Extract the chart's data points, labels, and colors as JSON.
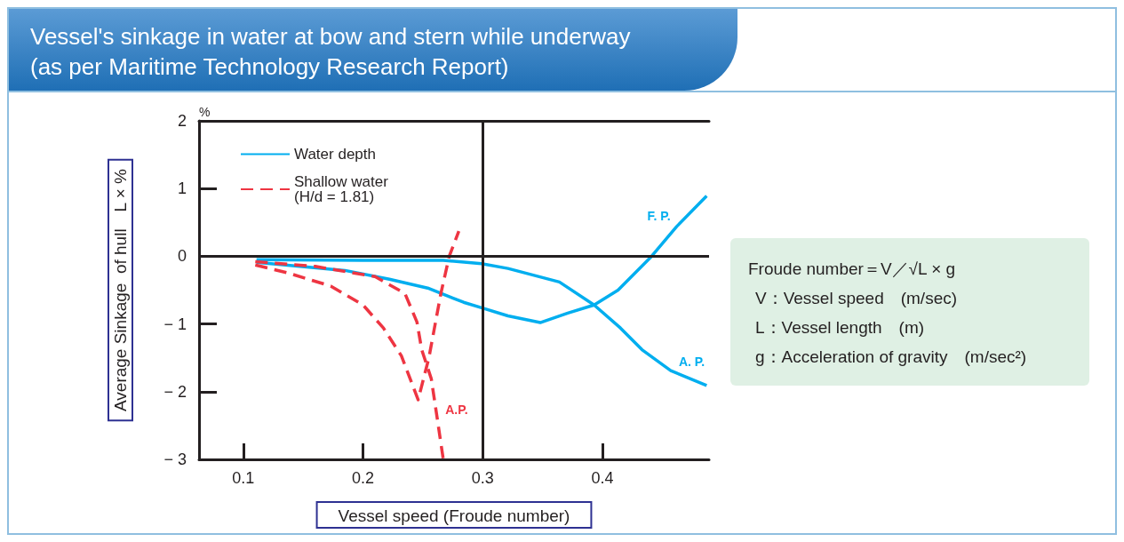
{
  "chart_data": {
    "type": "line",
    "title": "Vessel's sinkage in water at bow and stern while underway",
    "subtitle": "(as per Maritime Technology Research Report)",
    "xlabel": "Vessel speed (Froude number)",
    "ylabel": "Average Sinkage  of hull　L × %",
    "xlim": [
      0.063,
      0.489
    ],
    "xticks": [
      0.1,
      0.2,
      0.3,
      0.4
    ],
    "ylim": [
      -3,
      2
    ],
    "yticks": [
      {
        "value": -3,
        "label": "− 3"
      },
      {
        "value": -2,
        "label": "− 2"
      },
      {
        "value": -1,
        "label": "− 1"
      },
      0,
      1,
      2
    ],
    "grid": false,
    "legend": "top left",
    "marker": "none",
    "line_style": "solid",
    "ref_lines": [
      {
        "axis": "y",
        "value": 0,
        "label": null,
        "color": "#231f20"
      },
      {
        "axis": "x",
        "value": 0.3,
        "label": null,
        "color": "#231f20"
      }
    ],
    "series": [
      {
        "name": "Water depth",
        "color": "#00aeef",
        "x": [
          0.111,
          0.185,
          0.222,
          0.254,
          0.284,
          0.299,
          0.321,
          0.348,
          0.371,
          0.393,
          0.413,
          0.441,
          0.462,
          0.487
        ],
        "values": [
          -0.09,
          -0.21,
          -0.34,
          -0.47,
          -0.68,
          -0.76,
          -0.88,
          -0.98,
          -0.84,
          -0.72,
          -0.5,
          0,
          0.44,
          0.89
        ]
      },
      {
        "color": "#00aeef",
        "x": [
          0.111,
          0.2,
          0.267,
          0.299,
          0.321,
          0.364,
          0.393,
          0.415,
          0.433,
          0.457,
          0.487
        ],
        "values": [
          -0.05,
          -0.06,
          -0.06,
          -0.11,
          -0.18,
          -0.38,
          -0.72,
          -1.06,
          -1.38,
          -1.69,
          -1.91
        ]
      },
      {
        "name": "Shallow water\n(H/d = 1.81)",
        "color": "#ee3542",
        "line_style": "dashed",
        "x": [
          0.11,
          0.136,
          0.173,
          0.2,
          0.217,
          0.232,
          0.246,
          0.255,
          0.265,
          0.272,
          0.28
        ],
        "values": [
          -0.13,
          -0.24,
          -0.44,
          -0.72,
          -1.06,
          -1.47,
          -2.12,
          -1.5,
          -0.55,
          0,
          0.37
        ]
      },
      {
        "color": "#ee3542",
        "line_style": "dashed",
        "x": [
          0.11,
          0.16,
          0.21,
          0.235,
          0.245,
          0.249,
          0.257,
          0.262,
          0.267
        ],
        "values": [
          -0.08,
          -0.15,
          -0.3,
          -0.55,
          -0.97,
          -1.38,
          -1.81,
          -2.4,
          -3.0
        ]
      }
    ],
    "annotations": [
      "%",
      "Froude number＝V／√L × g",
      "V：Vessel speed　(m/sec)",
      "L：Vessel length　(m)",
      "g：Acceleration of gravity　(m/sec²)",
      {
        "text": "F. P.",
        "x": 0.462,
        "y": 0.44
      },
      {
        "text": "A. P.",
        "x": 0.457,
        "y": -1.69
      },
      {
        "text": "A.P.",
        "x": 0.262,
        "y": -2.4
      }
    ]
  }
}
